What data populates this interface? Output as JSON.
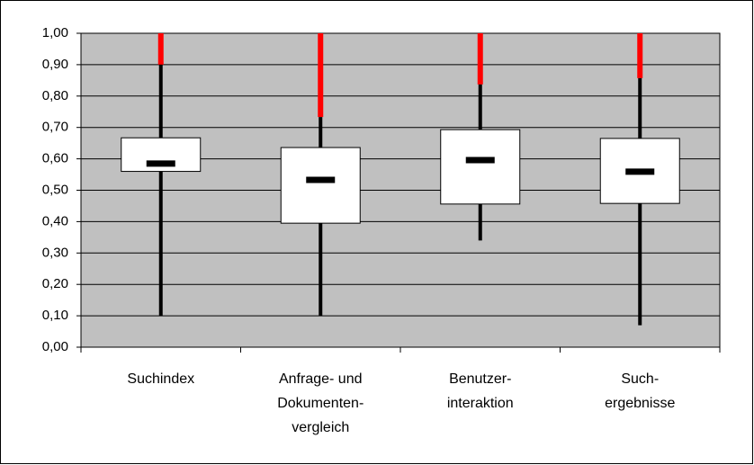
{
  "chart_data": {
    "type": "box",
    "categories": [
      [
        "Suchindex"
      ],
      [
        "Anfrage- und",
        "Dokumenten-",
        "vergleich"
      ],
      [
        "Benutzer-",
        "interaktion"
      ],
      [
        "Such-",
        "ergebnisse"
      ]
    ],
    "series": {
      "whisker_low": [
        0.1,
        0.1,
        0.34,
        0.07
      ],
      "q1": [
        0.56,
        0.395,
        0.456,
        0.458
      ],
      "median": [
        0.585,
        0.533,
        0.596,
        0.559
      ],
      "q3": [
        0.667,
        0.636,
        0.693,
        0.665
      ],
      "whisker_high": [
        0.9,
        0.733,
        0.837,
        0.857
      ]
    },
    "box_color": "#ffffff",
    "whisker_color": "#000000",
    "upper_color": "#ff0000",
    "plot_background": "#c0c0c0",
    "ylim": [
      0,
      1
    ],
    "yticks": [
      {
        "value": 0,
        "label": "0,00"
      },
      {
        "value": 0.1,
        "label": "0,10"
      },
      {
        "value": 0.2,
        "label": "0,20"
      },
      {
        "value": 0.3,
        "label": "0,30"
      },
      {
        "value": 0.4,
        "label": "0,40"
      },
      {
        "value": 0.5,
        "label": "0,50"
      },
      {
        "value": 0.6,
        "label": "0,60"
      },
      {
        "value": 0.7,
        "label": "0,70"
      },
      {
        "value": 0.8,
        "label": "0,80"
      },
      {
        "value": 0.9,
        "label": "0,90"
      },
      {
        "value": 1,
        "label": "1,00"
      }
    ],
    "grid": true
  }
}
